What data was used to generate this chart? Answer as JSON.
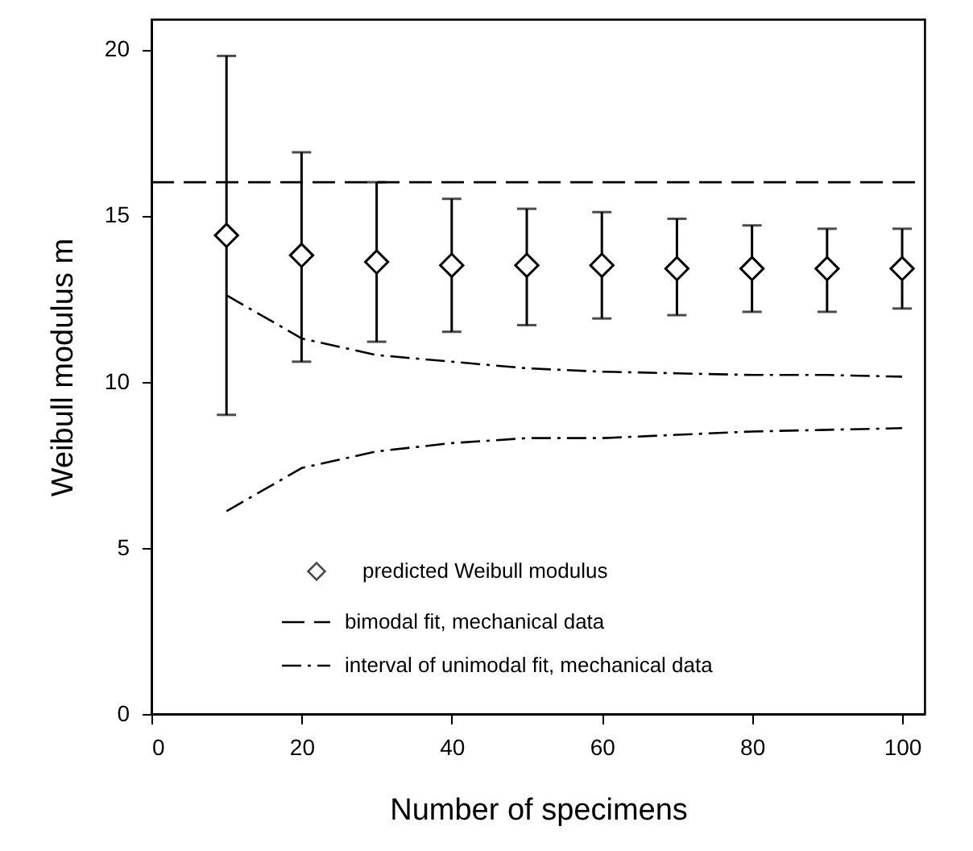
{
  "chart_data": {
    "type": "scatter",
    "xlabel": "Number of specimens",
    "ylabel": "Weibull modulus m",
    "xlim": [
      0,
      103
    ],
    "ylim": [
      0,
      20.9
    ],
    "xticks": [
      0,
      20,
      40,
      60,
      80,
      100
    ],
    "yticks": [
      0,
      5,
      10,
      15,
      20
    ],
    "grid": false,
    "legend": "bottom left",
    "series": [
      {
        "name": "predicted Weibull modulus",
        "marker": "diamond",
        "color": "#000000",
        "x": [
          10,
          20,
          30,
          40,
          50,
          60,
          70,
          80,
          90,
          100
        ],
        "values": [
          14.4,
          13.8,
          13.6,
          13.5,
          13.5,
          13.5,
          13.4,
          13.4,
          13.4,
          13.4
        ],
        "errors": [
          [
            9.0,
            19.8
          ],
          [
            10.6,
            16.9
          ],
          [
            11.2,
            16.0
          ],
          [
            11.5,
            15.5
          ],
          [
            11.7,
            15.2
          ],
          [
            11.9,
            15.1
          ],
          [
            12.0,
            14.9
          ],
          [
            12.1,
            14.7
          ],
          [
            12.1,
            14.6
          ],
          [
            12.2,
            14.6
          ]
        ]
      },
      {
        "name": "bimodal fit, mechanical data",
        "type": "line",
        "line_style": "dashed",
        "color": "#000000",
        "x": [
          0,
          103
        ],
        "values": [
          16.0,
          16.0
        ]
      },
      {
        "name": "interval of unimodal fit, mechanical data",
        "type": "line",
        "line_style": "dashdot",
        "color": "#000000",
        "x": [
          10,
          20,
          30,
          40,
          50,
          60,
          70,
          80,
          90,
          100
        ],
        "values": [
          12.6,
          11.3,
          10.8,
          10.6,
          10.4,
          10.3,
          10.25,
          10.2,
          10.2,
          10.15
        ]
      },
      {
        "type": "line",
        "line_style": "dashdot",
        "color": "#000000",
        "x": [
          10,
          20,
          30,
          40,
          50,
          60,
          70,
          80,
          90,
          100
        ],
        "values": [
          6.1,
          7.4,
          7.9,
          8.15,
          8.3,
          8.3,
          8.4,
          8.5,
          8.55,
          8.6
        ]
      }
    ]
  }
}
